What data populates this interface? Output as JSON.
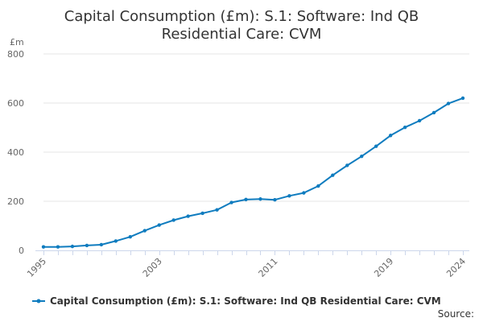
{
  "chart_data": {
    "type": "line",
    "title_lines": [
      "Capital Consumption (£m): S.1: Software: Ind QB",
      "Residential Care: CVM"
    ],
    "unit_label": "£m",
    "ylim": [
      0,
      800
    ],
    "y_ticks": [
      0,
      200,
      400,
      600,
      800
    ],
    "x_range": [
      1995,
      2024
    ],
    "x_tick_labels": [
      "1995",
      "2003",
      "2011",
      "2019",
      "2024"
    ],
    "grid": true,
    "legend_position": "bottom",
    "series": [
      {
        "name": "Capital Consumption (£m): S.1: Software: Ind QB Residential Care: CVM",
        "color": "#0f7cbf",
        "x": [
          1995,
          1996,
          1997,
          1998,
          1999,
          2000,
          2001,
          2002,
          2003,
          2004,
          2005,
          2006,
          2007,
          2008,
          2009,
          2010,
          2011,
          2012,
          2013,
          2014,
          2015,
          2016,
          2017,
          2018,
          2019,
          2020,
          2021,
          2022,
          2023,
          2024
        ],
        "values": [
          14,
          14,
          16,
          20,
          23,
          38,
          55,
          80,
          103,
          123,
          139,
          151,
          165,
          195,
          207,
          209,
          206,
          222,
          234,
          262,
          306,
          346,
          383,
          424,
          468,
          501,
          528,
          561,
          598,
          620
        ]
      }
    ],
    "source_label": "Source:"
  }
}
